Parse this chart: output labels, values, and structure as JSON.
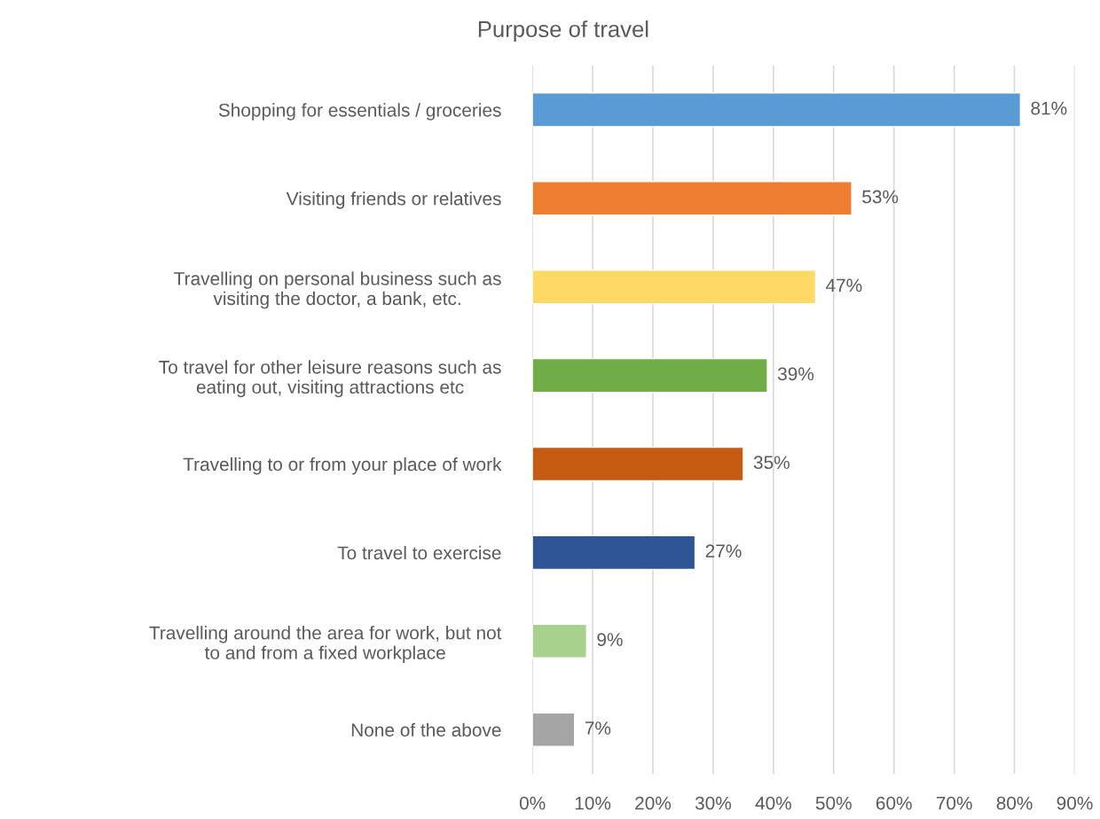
{
  "chart_data": {
    "type": "bar",
    "orientation": "horizontal",
    "title": "Purpose of travel",
    "categories": [
      "Shopping for essentials / groceries",
      "Visiting friends or relatives",
      "Travelling on personal business such as\nvisiting the doctor, a bank, etc.",
      "To travel for other leisure reasons such as\neating out, visiting attractions etc",
      "Travelling to or from your place of work",
      "To travel to exercise",
      "Travelling around the area for work, but not\nto and from a fixed workplace",
      "None of the above"
    ],
    "values": [
      81,
      53,
      47,
      39,
      35,
      27,
      9,
      7
    ],
    "colors": [
      "#5b9bd5",
      "#ed7d31",
      "#ffd966",
      "#70ad47",
      "#c55a11",
      "#2f5597",
      "#a9d18e",
      "#a5a5a5"
    ],
    "value_labels": [
      "81%",
      "53%",
      "47%",
      "39%",
      "35%",
      "27%",
      "9%",
      "7%"
    ],
    "xlim": [
      0,
      90
    ],
    "xticks": [
      {
        "value": 0,
        "label": "0%"
      },
      {
        "value": 10,
        "label": "10%"
      },
      {
        "value": 20,
        "label": "20%"
      },
      {
        "value": 30,
        "label": "30%"
      },
      {
        "value": 40,
        "label": "40%"
      },
      {
        "value": 50,
        "label": "50%"
      },
      {
        "value": 60,
        "label": "60%"
      },
      {
        "value": 70,
        "label": "70%"
      },
      {
        "value": 80,
        "label": "80%"
      },
      {
        "value": 90,
        "label": "90%"
      }
    ],
    "grid": "x",
    "legend": false
  }
}
